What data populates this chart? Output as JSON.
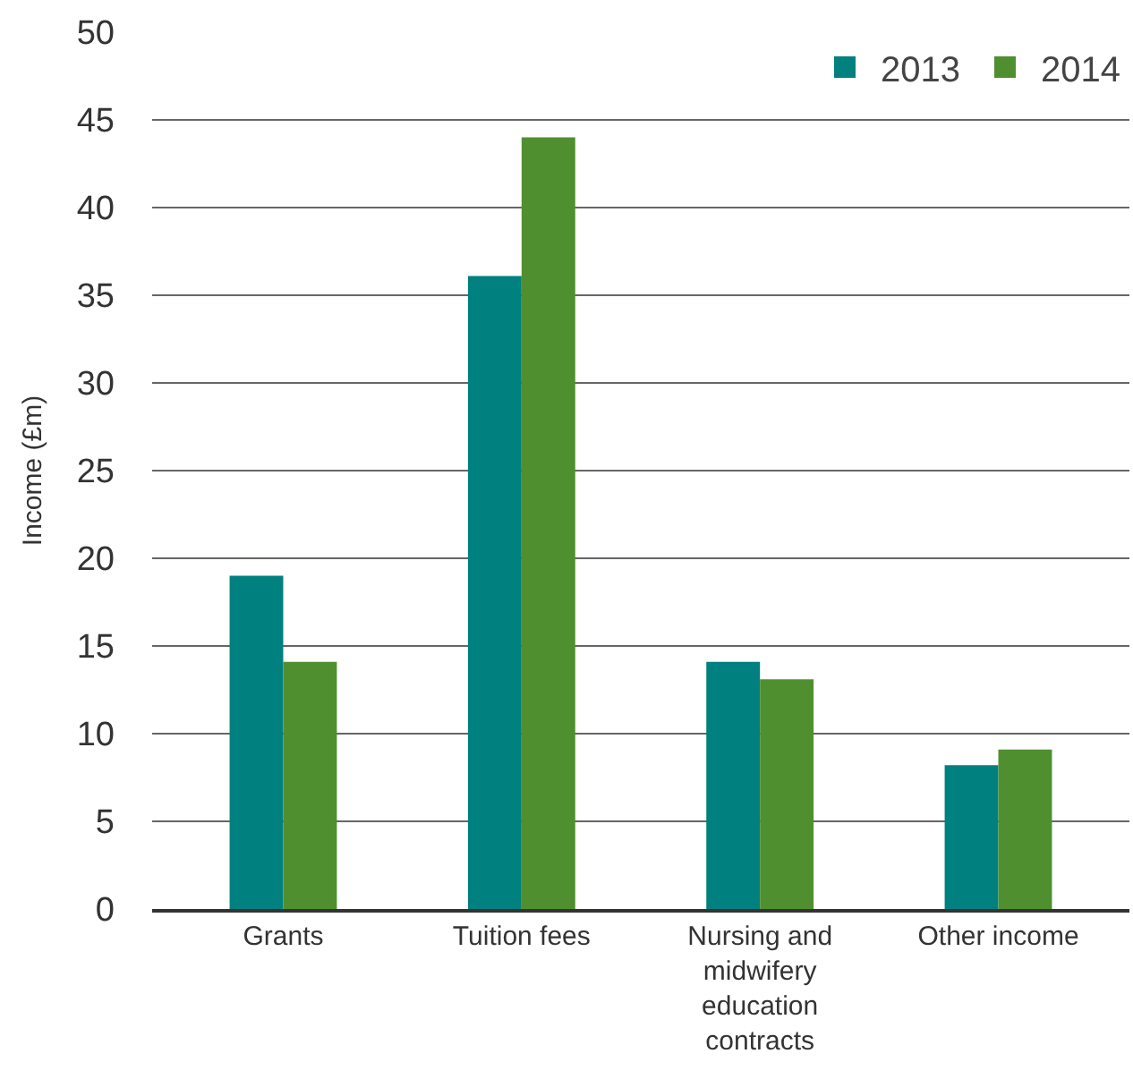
{
  "chart_data": {
    "type": "bar",
    "ylabel": "Income (£m)",
    "categories": [
      "Grants",
      "Tuition fees",
      "Nursing and midwifery education contracts",
      "Other income"
    ],
    "series": [
      {
        "name": "2013",
        "color": "#00807f",
        "values": [
          19.0,
          36.1,
          14.1,
          8.2
        ]
      },
      {
        "name": "2014",
        "color": "#4f8f2f",
        "values": [
          14.1,
          44.0,
          13.1,
          9.1
        ]
      }
    ],
    "ylim": [
      0,
      50
    ],
    "yticks": [
      0,
      5,
      10,
      15,
      20,
      25,
      30,
      35,
      40,
      45,
      50
    ],
    "grid": "y",
    "legend": "top right"
  }
}
